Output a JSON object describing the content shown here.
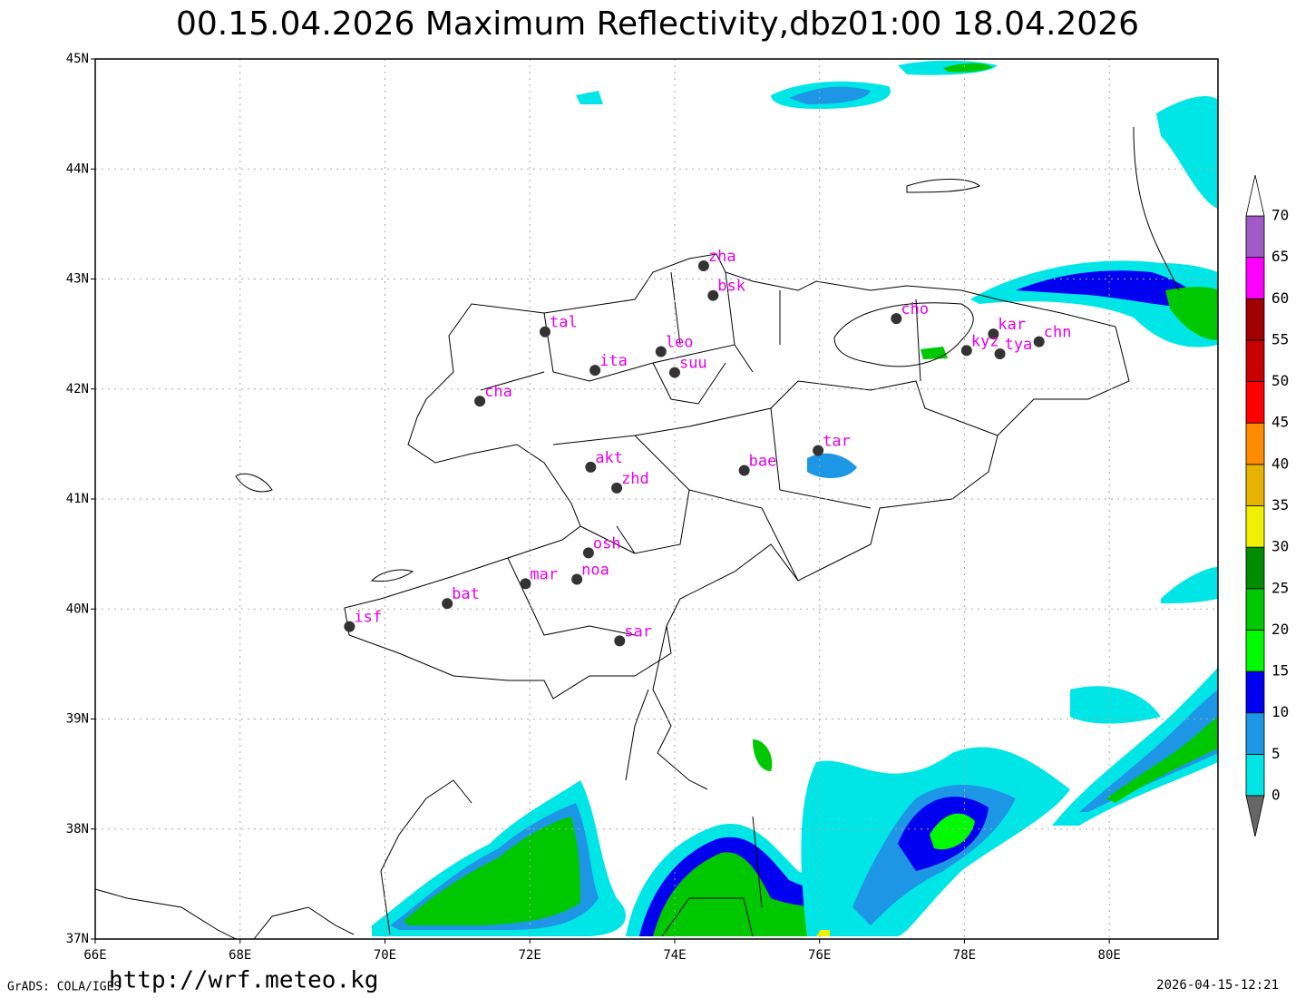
{
  "title": "00.15.04.2026  Maximum  Reflectivity,dbz01:00  18.04.2026",
  "map": {
    "xlim": [
      66,
      81.5
    ],
    "ylim": [
      37,
      45
    ],
    "xticks": [
      {
        "value": 66,
        "label": "66E"
      },
      {
        "value": 68,
        "label": "68E"
      },
      {
        "value": 70,
        "label": "70E"
      },
      {
        "value": 72,
        "label": "72E"
      },
      {
        "value": 74,
        "label": "74E"
      },
      {
        "value": 76,
        "label": "76E"
      },
      {
        "value": 78,
        "label": "78E"
      },
      {
        "value": 80,
        "label": "80E"
      }
    ],
    "yticks": [
      {
        "value": 37,
        "label": "37N"
      },
      {
        "value": 38,
        "label": "38N"
      },
      {
        "value": 39,
        "label": "39N"
      },
      {
        "value": 40,
        "label": "40N"
      },
      {
        "value": 41,
        "label": "41N"
      },
      {
        "value": 42,
        "label": "42N"
      },
      {
        "value": 43,
        "label": "43N"
      },
      {
        "value": 44,
        "label": "44N"
      },
      {
        "value": 45,
        "label": "45N"
      }
    ],
    "grid": true,
    "station_color": "#333333",
    "label_color": "#e600e6",
    "stations": [
      {
        "name": "zha",
        "lon": 74.4,
        "lat": 43.12
      },
      {
        "name": "bsk",
        "lon": 74.53,
        "lat": 42.85
      },
      {
        "name": "tal",
        "lon": 72.21,
        "lat": 42.52
      },
      {
        "name": "leo",
        "lon": 73.81,
        "lat": 42.34
      },
      {
        "name": "ita",
        "lon": 72.9,
        "lat": 42.17
      },
      {
        "name": "suu",
        "lon": 74.0,
        "lat": 42.15
      },
      {
        "name": "cha",
        "lon": 71.31,
        "lat": 41.89
      },
      {
        "name": "cho",
        "lon": 77.06,
        "lat": 42.64
      },
      {
        "name": "kar",
        "lon": 78.4,
        "lat": 42.5
      },
      {
        "name": "kyz",
        "lon": 78.03,
        "lat": 42.35
      },
      {
        "name": "tya",
        "lon": 78.49,
        "lat": 42.32
      },
      {
        "name": "chn",
        "lon": 79.03,
        "lat": 42.43
      },
      {
        "name": "tar",
        "lon": 75.98,
        "lat": 41.44
      },
      {
        "name": "bae",
        "lon": 74.96,
        "lat": 41.26
      },
      {
        "name": "akt",
        "lon": 72.84,
        "lat": 41.29
      },
      {
        "name": "zhd",
        "lon": 73.2,
        "lat": 41.1
      },
      {
        "name": "osh",
        "lon": 72.81,
        "lat": 40.51
      },
      {
        "name": "mar",
        "lon": 71.94,
        "lat": 40.23
      },
      {
        "name": "noa",
        "lon": 72.65,
        "lat": 40.27
      },
      {
        "name": "bat",
        "lon": 70.86,
        "lat": 40.05
      },
      {
        "name": "isf",
        "lon": 69.51,
        "lat": 39.84
      },
      {
        "name": "sar",
        "lon": 73.24,
        "lat": 39.71
      }
    ]
  },
  "colorbar": {
    "levels": [
      0,
      5,
      10,
      15,
      20,
      25,
      30,
      35,
      40,
      45,
      50,
      55,
      60,
      65,
      70
    ],
    "colors": [
      "#00e6e6",
      "#1e96e6",
      "#0000f0",
      "#00fa00",
      "#00c800",
      "#008c00",
      "#f0f000",
      "#e6b400",
      "#ff8c00",
      "#ff0000",
      "#c80000",
      "#a00000",
      "#ff00ff",
      "#a05ac8"
    ],
    "under_color": "#666666",
    "over_color": "#ffffff"
  },
  "footer": {
    "url": "http://wrf.meteo.kg",
    "credit": "GrADS: COLA/IGES",
    "timestamp": "2026-04-15-12:21"
  }
}
